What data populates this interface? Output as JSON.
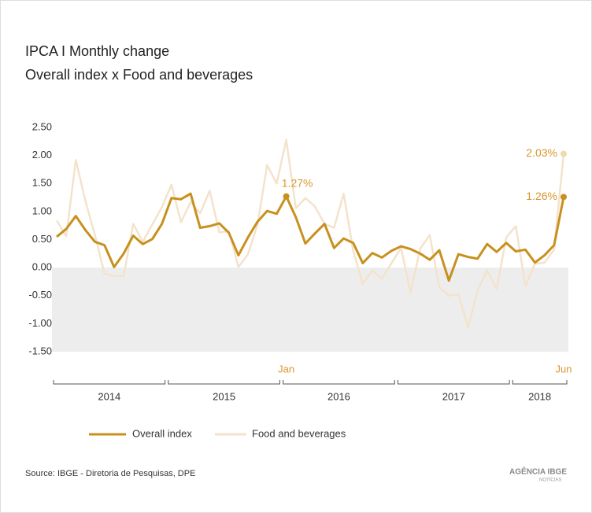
{
  "chart_data": {
    "type": "line",
    "title": "IPCA I Monthly change",
    "subtitle": "Overall index x Food and beverages",
    "categories": [
      null,
      null,
      null,
      null,
      null,
      null,
      null,
      null,
      null,
      null,
      null,
      null,
      null,
      null,
      null,
      null,
      null,
      null,
      null,
      null,
      null,
      null,
      null,
      null,
      "Jan",
      null,
      null,
      null,
      null,
      null,
      null,
      null,
      null,
      null,
      null,
      null,
      null,
      null,
      null,
      null,
      null,
      null,
      null,
      null,
      null,
      null,
      null,
      null,
      null,
      null,
      null,
      null,
      null,
      "Jun"
    ],
    "years": [
      "2014",
      "2015",
      "2016",
      "2017",
      "2018"
    ],
    "series": [
      {
        "name": "Overall index",
        "color": "#c8901e",
        "values": [
          0.55,
          0.69,
          0.92,
          0.67,
          0.46,
          0.4,
          0.01,
          0.25,
          0.57,
          0.42,
          0.51,
          0.78,
          1.24,
          1.22,
          1.32,
          0.71,
          0.74,
          0.79,
          0.62,
          0.22,
          0.54,
          0.82,
          1.01,
          0.96,
          1.27,
          0.9,
          0.43,
          0.61,
          0.78,
          0.35,
          0.52,
          0.44,
          0.08,
          0.26,
          0.18,
          0.3,
          0.38,
          0.33,
          0.25,
          0.14,
          0.31,
          -0.23,
          0.24,
          0.19,
          0.16,
          0.42,
          0.28,
          0.44,
          0.29,
          0.32,
          0.09,
          0.22,
          0.4,
          1.26
        ],
        "value_labels": [
          null,
          null,
          null,
          null,
          null,
          null,
          null,
          null,
          null,
          null,
          null,
          null,
          null,
          null,
          null,
          null,
          null,
          null,
          null,
          null,
          null,
          null,
          null,
          null,
          "1.27%",
          null,
          null,
          null,
          null,
          null,
          null,
          null,
          null,
          null,
          null,
          null,
          null,
          null,
          null,
          null,
          null,
          null,
          null,
          null,
          null,
          null,
          null,
          null,
          null,
          null,
          null,
          null,
          null,
          "1.26%"
        ]
      },
      {
        "name": "Food and beverages",
        "color": "#f3e3cc",
        "values": [
          0.84,
          0.56,
          1.92,
          1.19,
          0.58,
          -0.11,
          -0.15,
          -0.15,
          0.78,
          0.46,
          0.77,
          1.08,
          1.48,
          0.81,
          1.17,
          0.97,
          1.37,
          0.63,
          0.65,
          0.01,
          0.24,
          0.77,
          1.83,
          1.5,
          2.28,
          1.06,
          1.24,
          1.09,
          0.78,
          0.71,
          1.32,
          0.3,
          -0.29,
          -0.05,
          -0.2,
          0.08,
          0.35,
          -0.45,
          0.34,
          0.58,
          -0.35,
          -0.5,
          -0.47,
          -1.07,
          -0.41,
          -0.05,
          -0.38,
          0.54,
          0.74,
          -0.33,
          0.07,
          0.09,
          0.32,
          2.03
        ],
        "value_labels": [
          null,
          null,
          null,
          null,
          null,
          null,
          null,
          null,
          null,
          null,
          null,
          null,
          null,
          null,
          null,
          null,
          null,
          null,
          null,
          null,
          null,
          null,
          null,
          null,
          null,
          null,
          null,
          null,
          null,
          null,
          null,
          null,
          null,
          null,
          null,
          null,
          null,
          null,
          null,
          null,
          null,
          null,
          null,
          null,
          null,
          null,
          null,
          null,
          null,
          null,
          null,
          null,
          null,
          "2.03%"
        ]
      }
    ],
    "ylim": [
      -1.5,
      2.5
    ],
    "yticks": [
      {
        "value": 2.5,
        "label": "2.50"
      },
      {
        "value": 2,
        "label": "2.00"
      },
      {
        "value": 1.5,
        "label": "1.50"
      },
      {
        "value": 1,
        "label": "1.00"
      },
      {
        "value": 0.5,
        "label": "0.50"
      },
      {
        "value": 0,
        "label": "0.00"
      },
      {
        "value": -0.5,
        "label": "-0.50"
      },
      {
        "value": -1,
        "label": "-1.00"
      },
      {
        "value": -1.5,
        "label": "-1.50"
      }
    ],
    "negative_shading": "#ededee",
    "source": "Source: IBGE - Diretoria de Pesquisas, DPE",
    "logo": "AGÊNCIA IBGE",
    "logo_sub": "NOTÍCIAS"
  }
}
